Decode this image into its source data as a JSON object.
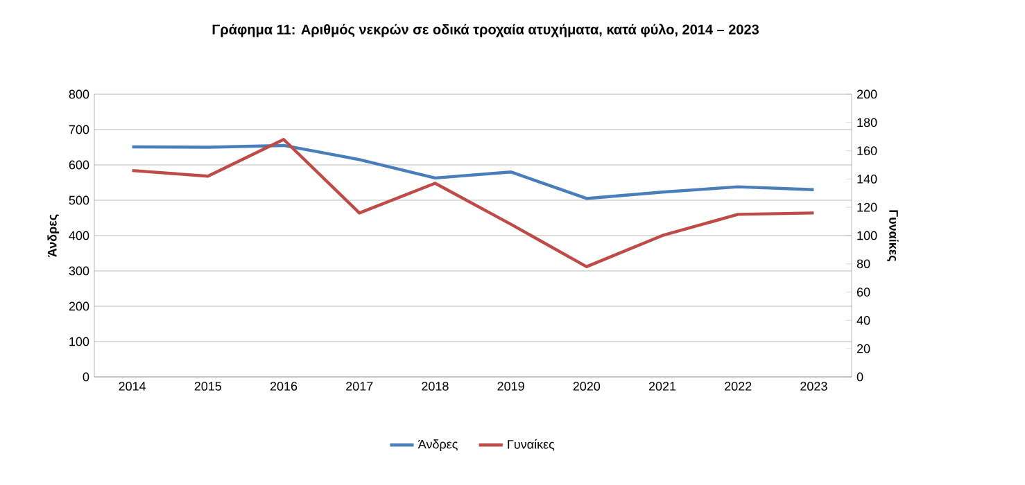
{
  "chart_data": {
    "type": "line",
    "title": "Γράφημα 11: Αριθμός νεκρών σε οδικά τροχαία ατυχήματα, κατά φύλο, 2014 – 2023",
    "categories": [
      "2014",
      "2015",
      "2016",
      "2017",
      "2018",
      "2019",
      "2020",
      "2021",
      "2022",
      "2023"
    ],
    "series": [
      {
        "name": "Άνδρες",
        "color": "#4a7ebb",
        "values": [
          651,
          650,
          655,
          615,
          563,
          580,
          505,
          523,
          538,
          530
        ]
      },
      {
        "name": "Γυναίκες",
        "color": "#be4b48",
        "axis": "y2",
        "values": [
          146,
          142,
          168,
          116,
          137,
          108,
          78,
          100,
          115,
          116
        ]
      }
    ],
    "ylabel": "Άνδρες",
    "y2label": "Γυναίκες",
    "ylim": [
      0,
      800
    ],
    "yticks": [
      0,
      100,
      200,
      300,
      400,
      500,
      600,
      700,
      800
    ],
    "y2lim": [
      0,
      200
    ],
    "y2ticks": [
      0,
      20,
      40,
      60,
      80,
      100,
      120,
      140,
      160,
      180,
      200
    ],
    "grid": "y",
    "legend": "bottom",
    "marker": "none",
    "line_style": "solid"
  }
}
